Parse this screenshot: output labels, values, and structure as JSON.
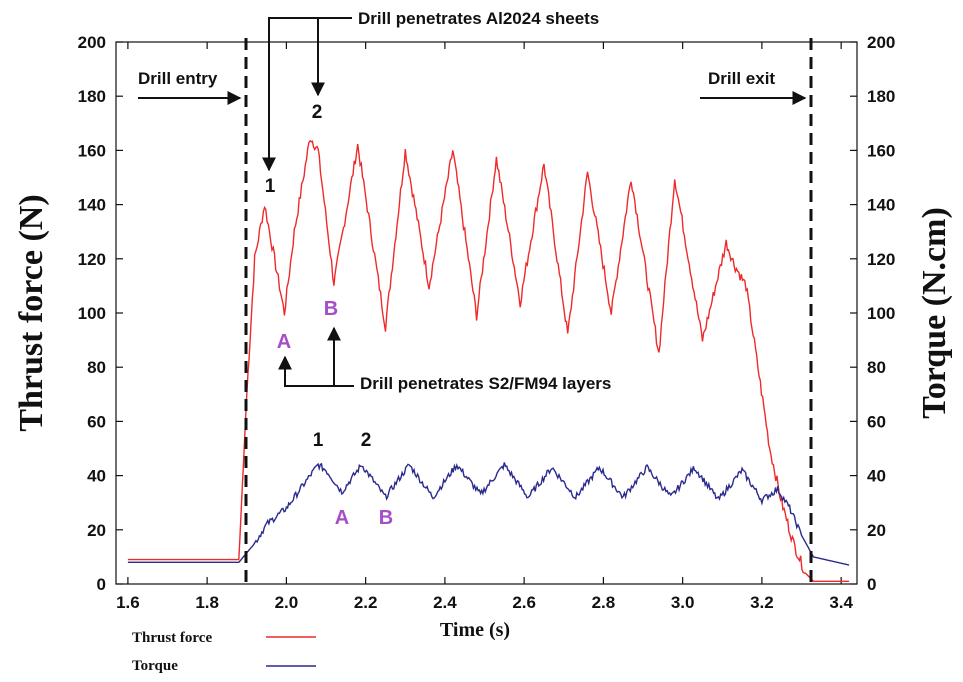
{
  "chart_data": {
    "type": "line",
    "title": "",
    "xlabel": "Time (s)",
    "ylabel_left": "Thrust force (N)",
    "ylabel_right": "Torque (N.cm)",
    "xlim": [
      1.57,
      3.44
    ],
    "ylim_left": [
      0,
      200
    ],
    "ylim_right": [
      0,
      200
    ],
    "x_ticks": [
      "1.6",
      "1.8",
      "2.0",
      "2.2",
      "2.4",
      "2.6",
      "2.8",
      "3.0",
      "3.2",
      "3.4"
    ],
    "y_ticks_left": [
      "0",
      "20",
      "40",
      "60",
      "80",
      "100",
      "120",
      "140",
      "160",
      "180",
      "200"
    ],
    "y_ticks_right": [
      "0",
      "20",
      "40",
      "60",
      "80",
      "100",
      "120",
      "140",
      "160",
      "180",
      "200"
    ],
    "grid": false,
    "legend_position": "bottom-left",
    "series": [
      {
        "name": "Thrust force",
        "color": "#ee2a2a",
        "axis": "left",
        "points": [
          [
            1.6,
            9
          ],
          [
            1.88,
            9
          ],
          [
            1.9,
            70
          ],
          [
            1.92,
            120
          ],
          [
            1.945,
            140
          ],
          [
            1.97,
            120
          ],
          [
            1.995,
            100
          ],
          [
            2.02,
            130
          ],
          [
            2.06,
            165
          ],
          [
            2.08,
            160
          ],
          [
            2.12,
            111
          ],
          [
            2.18,
            162
          ],
          [
            2.25,
            95
          ],
          [
            2.3,
            160
          ],
          [
            2.36,
            110
          ],
          [
            2.42,
            160
          ],
          [
            2.48,
            99
          ],
          [
            2.53,
            157
          ],
          [
            2.59,
            104
          ],
          [
            2.65,
            155
          ],
          [
            2.71,
            92
          ],
          [
            2.76,
            152
          ],
          [
            2.82,
            100
          ],
          [
            2.87,
            150
          ],
          [
            2.94,
            85
          ],
          [
            2.98,
            150
          ],
          [
            3.05,
            90
          ],
          [
            3.11,
            126
          ],
          [
            3.13,
            118
          ],
          [
            3.16,
            110
          ],
          [
            3.19,
            80
          ],
          [
            3.22,
            50
          ],
          [
            3.25,
            30
          ],
          [
            3.28,
            15
          ],
          [
            3.31,
            4
          ],
          [
            3.33,
            1
          ],
          [
            3.42,
            1
          ]
        ]
      },
      {
        "name": "Torque",
        "color": "#2a2a8c",
        "axis": "right",
        "points": [
          [
            1.6,
            8
          ],
          [
            1.88,
            8
          ],
          [
            1.92,
            15
          ],
          [
            1.95,
            22
          ],
          [
            2.0,
            28
          ],
          [
            2.05,
            38
          ],
          [
            2.08,
            44
          ],
          [
            2.1,
            42
          ],
          [
            2.14,
            34
          ],
          [
            2.19,
            44
          ],
          [
            2.25,
            32
          ],
          [
            2.31,
            44
          ],
          [
            2.37,
            32
          ],
          [
            2.43,
            44
          ],
          [
            2.49,
            33
          ],
          [
            2.55,
            44
          ],
          [
            2.61,
            32
          ],
          [
            2.67,
            43
          ],
          [
            2.73,
            32
          ],
          [
            2.79,
            43
          ],
          [
            2.85,
            32
          ],
          [
            2.91,
            43
          ],
          [
            2.97,
            32
          ],
          [
            3.03,
            43
          ],
          [
            3.09,
            31
          ],
          [
            3.15,
            42
          ],
          [
            3.2,
            31
          ],
          [
            3.24,
            35
          ],
          [
            3.27,
            28
          ],
          [
            3.3,
            18
          ],
          [
            3.33,
            10
          ],
          [
            3.42,
            7
          ]
        ]
      }
    ],
    "annotations": {
      "drill_entry": "Drill entry",
      "drill_exit": "Drill exit",
      "penetrates_sheets": "Drill penetrates Al2024 sheets",
      "penetrates_layers": "Drill penetrates S2/FM94 layers",
      "thrust_peak_1": "1",
      "thrust_peak_2": "2",
      "thrust_valley_a": "A",
      "thrust_valley_b": "B",
      "torque_peak_1": "1",
      "torque_peak_2": "2",
      "torque_valley_a": "A",
      "torque_valley_b": "B"
    },
    "annotation_color": "#a64dc8"
  }
}
